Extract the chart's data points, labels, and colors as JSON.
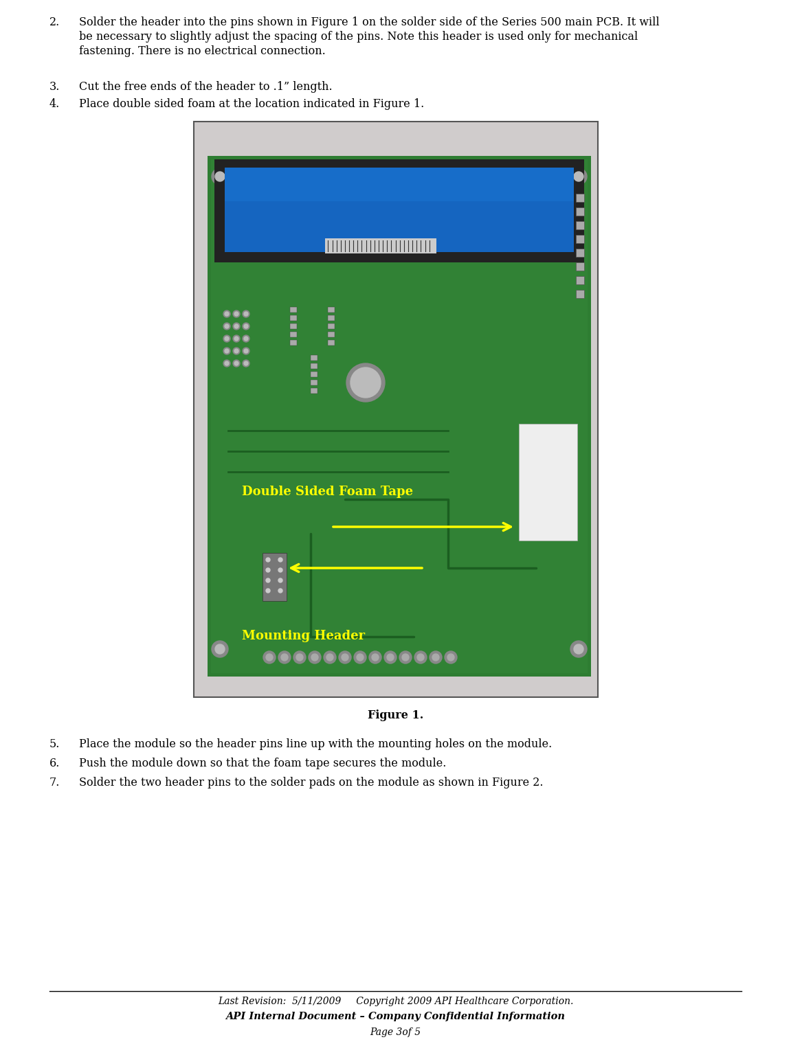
{
  "bg_color": "#ffffff",
  "text_color": "#000000",
  "page_width": 11.31,
  "page_height": 14.93,
  "fs": 11.5,
  "label_color": "#ffff00",
  "label_foam": "Double Sided Foam Tape",
  "label_header": "Mounting Header",
  "figure_caption": "Figure 1.",
  "footer_line1": "Last Revision:  5/11/2009     Copyright 2009 API Healthcare Corporation.",
  "footer_line2": "API Internal Document – Company Confidential Information",
  "footer_line3": "Page 3of 5",
  "footer_font_size": 10,
  "item2": "Solder the header into the pins shown in Figure 1 on the solder side of the Series 500 main PCB. It will\nbe necessary to slightly adjust the spacing of the pins. Note this header is used only for mechanical\nfastening. There is no electrical connection.",
  "item3": "Cut the free ends of the header to .1” length.",
  "item4": "Place double sided foam at the location indicated in Figure 1.",
  "item5": "Place the module so the header pins line up with the mounting holes on the module.",
  "item6": "Push the module down so that the foam tape secures the module.",
  "item7": "Solder the two header pins to the solder pads on the module as shown in Figure 2.",
  "pcb_color": "#2e7d32",
  "pcb_light": "#388e3c",
  "lcd_black": "#1a1a2e",
  "lcd_blue": "#1565c0",
  "lcd_blue2": "#1976d2",
  "foam_white": "#e0e0e0",
  "bg_gray": "#d0cccc"
}
